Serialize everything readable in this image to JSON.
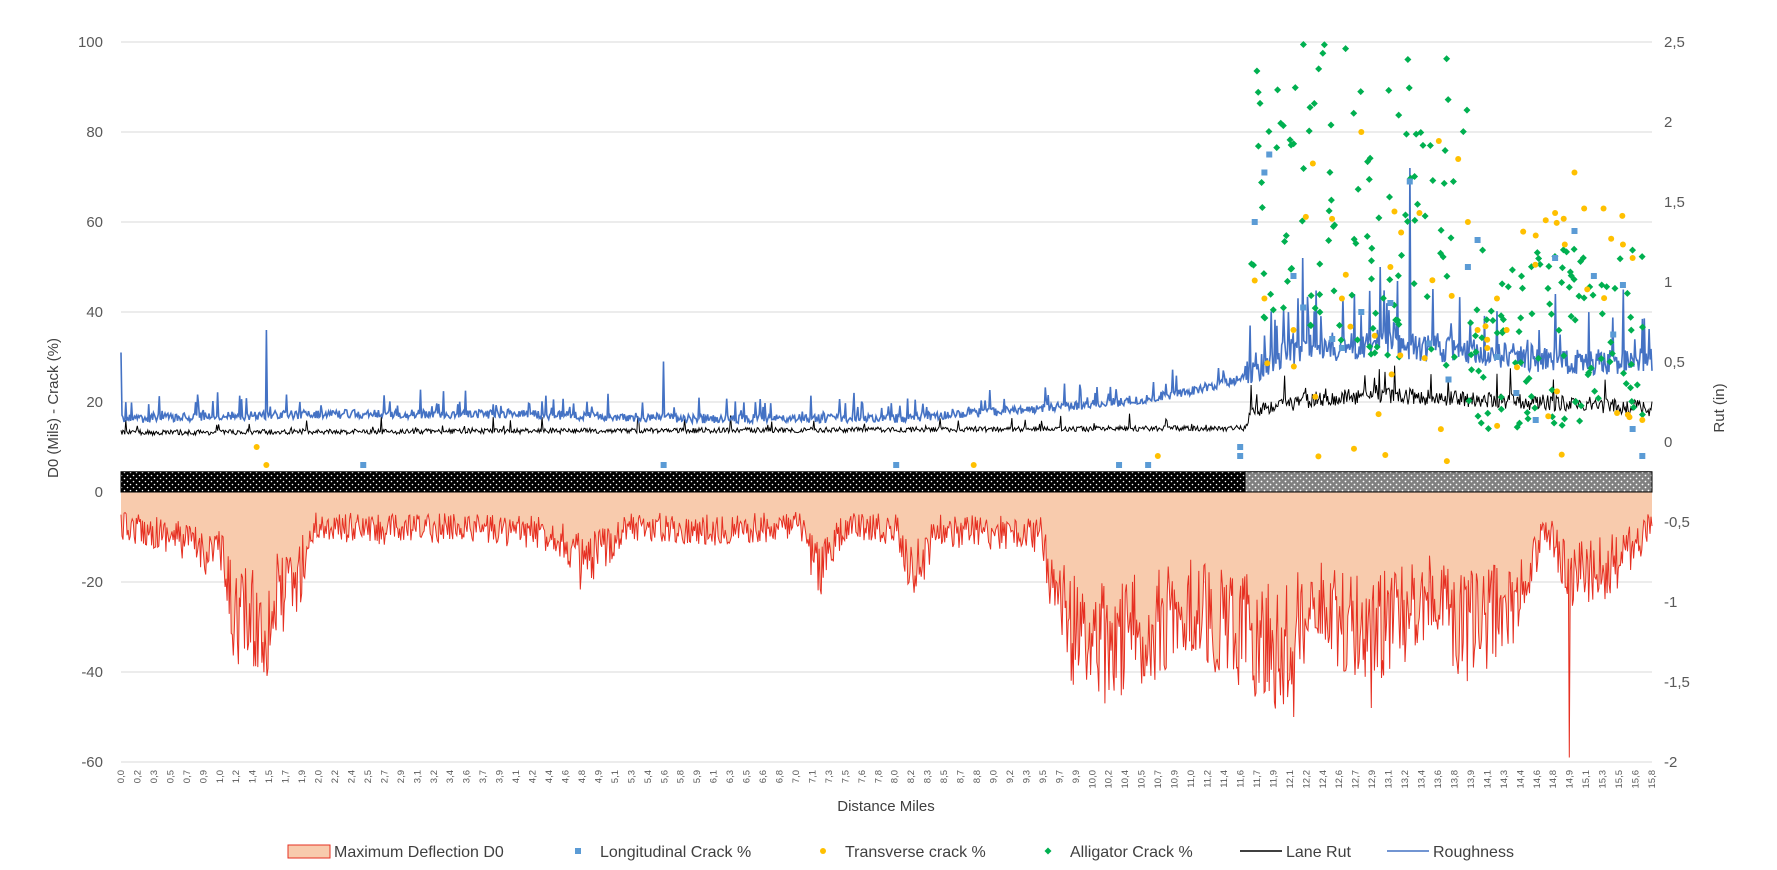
{
  "chart_data": {
    "type": "line",
    "title": "",
    "xlabel": "Distance Miles",
    "ylabel_left": "D0 (Mils) - Crack (%)",
    "ylabel_right": "Rut (in)",
    "x_range": [
      0.0,
      15.8
    ],
    "ylim_left": [
      -60,
      100
    ],
    "ylim_right": [
      -2,
      2.5
    ],
    "y_ticks_left": [
      "100",
      "80",
      "60",
      "40",
      "20",
      "0",
      "-20",
      "-40",
      "-60"
    ],
    "y_ticks_right": [
      "2,5",
      "2",
      "1,5",
      "1",
      "0,5",
      "0",
      "-0,5",
      "-1",
      "-1,5",
      "-2"
    ],
    "x_ticks": [
      "0,0",
      "0,2",
      "0,3",
      "0,5",
      "0,7",
      "0,9",
      "1,0",
      "1,2",
      "1,4",
      "1,5",
      "1,7",
      "1,9",
      "2,0",
      "2,2",
      "2,4",
      "2,5",
      "2,7",
      "2,9",
      "3,1",
      "3,2",
      "3,4",
      "3,6",
      "3,7",
      "3,9",
      "4,1",
      "4,2",
      "4,4",
      "4,6",
      "4,8",
      "4,9",
      "5,1",
      "5,3",
      "5,4",
      "5,6",
      "5,8",
      "5,9",
      "6,1",
      "6,3",
      "6,5",
      "6,6",
      "6,8",
      "7,0",
      "7,1",
      "7,3",
      "7,5",
      "7,6",
      "7,8",
      "8,0",
      "8,2",
      "8,3",
      "8,5",
      "8,7",
      "8,8",
      "9,0",
      "9,2",
      "9,3",
      "9,5",
      "9,7",
      "9,9",
      "10,0",
      "10,2",
      "10,4",
      "10,5",
      "10,7",
      "10,9",
      "11,0",
      "11,2",
      "11,4",
      "11,6",
      "11,7",
      "11,9",
      "12,1",
      "12,2",
      "12,4",
      "12,6",
      "12,7",
      "12,9",
      "13,1",
      "13,2",
      "13,4",
      "13,6",
      "13,8",
      "13,9",
      "14,1",
      "14,3",
      "14,4",
      "14,6",
      "14,8",
      "14,9",
      "15,1",
      "15,3",
      "15,5",
      "15,6",
      "15,8"
    ],
    "grid": "horizontal",
    "legend_position": "bottom",
    "section_band": {
      "break_mile": 11.6,
      "colors": [
        "#000000",
        "#7f7f7f"
      ]
    },
    "series": [
      {
        "name": "Maximum Deflection D0",
        "type": "area",
        "axis": "left",
        "color": "#e63022",
        "fill": "#f8cbad",
        "profile": [
          [
            0,
            -8
          ],
          [
            0.5,
            -10
          ],
          [
            0.9,
            -14
          ],
          [
            1.0,
            -12
          ],
          [
            1.15,
            -28
          ],
          [
            1.5,
            -32
          ],
          [
            1.6,
            -25
          ],
          [
            1.8,
            -22
          ],
          [
            2.0,
            -8
          ],
          [
            2.8,
            -9
          ],
          [
            3.5,
            -8
          ],
          [
            4.5,
            -10
          ],
          [
            4.8,
            -18
          ],
          [
            5.2,
            -8
          ],
          [
            6.0,
            -9
          ],
          [
            7.0,
            -8
          ],
          [
            7.2,
            -18
          ],
          [
            7.5,
            -8
          ],
          [
            8.0,
            -9
          ],
          [
            8.2,
            -20
          ],
          [
            8.4,
            -9
          ],
          [
            9.5,
            -10
          ],
          [
            9.6,
            -20
          ],
          [
            9.8,
            -32
          ],
          [
            10.2,
            -36
          ],
          [
            10.6,
            -32
          ],
          [
            11.0,
            -26
          ],
          [
            11.3,
            -30
          ],
          [
            11.7,
            -34
          ],
          [
            12.0,
            -38
          ],
          [
            12.3,
            -24
          ],
          [
            12.7,
            -32
          ],
          [
            13.2,
            -30
          ],
          [
            13.5,
            -24
          ],
          [
            13.9,
            -32
          ],
          [
            14.4,
            -26
          ],
          [
            14.7,
            -9
          ],
          [
            15.0,
            -20
          ],
          [
            15.4,
            -17
          ],
          [
            15.8,
            -8
          ]
        ],
        "spikes": [
          [
            1.5,
            -35
          ],
          [
            10.2,
            -44
          ],
          [
            12.1,
            -50
          ],
          [
            12.9,
            -48
          ],
          [
            14.95,
            -59
          ]
        ]
      },
      {
        "name": "Longitudinal Crack %",
        "type": "scatter",
        "axis": "left",
        "color": "#5b9bd5",
        "marker": "square",
        "points": [
          [
            2.5,
            6
          ],
          [
            5.6,
            6
          ],
          [
            8.0,
            6
          ],
          [
            10.3,
            6
          ],
          [
            10.6,
            6
          ],
          [
            11.55,
            8
          ],
          [
            11.55,
            10
          ],
          [
            11.7,
            60
          ],
          [
            11.8,
            71
          ],
          [
            11.85,
            75
          ],
          [
            12.1,
            48
          ],
          [
            12.2,
            41
          ],
          [
            12.5,
            34
          ],
          [
            12.6,
            32
          ],
          [
            12.8,
            40
          ],
          [
            13.1,
            42
          ],
          [
            13.3,
            69
          ],
          [
            13.5,
            33
          ],
          [
            13.7,
            25
          ],
          [
            13.9,
            50
          ],
          [
            14.0,
            56
          ],
          [
            14.2,
            30
          ],
          [
            14.4,
            22
          ],
          [
            14.6,
            16
          ],
          [
            14.8,
            52
          ],
          [
            15.0,
            58
          ],
          [
            15.2,
            48
          ],
          [
            15.4,
            35
          ],
          [
            15.5,
            46
          ],
          [
            15.6,
            14
          ],
          [
            15.7,
            8
          ]
        ]
      },
      {
        "name": "Transverse crack %",
        "type": "scatter",
        "axis": "left",
        "color": "#ffc000",
        "marker": "circle",
        "points": [
          [
            1.4,
            10
          ],
          [
            1.5,
            6
          ],
          [
            8.8,
            6
          ],
          [
            10.7,
            8
          ],
          [
            11.7,
            47
          ],
          [
            11.8,
            43
          ],
          [
            12.1,
            36
          ],
          [
            12.3,
            73
          ],
          [
            12.6,
            43
          ],
          [
            12.8,
            80
          ],
          [
            13.1,
            50
          ],
          [
            13.4,
            62
          ],
          [
            13.6,
            78
          ],
          [
            13.8,
            74
          ],
          [
            13.9,
            60
          ],
          [
            14.0,
            36
          ],
          [
            14.1,
            32
          ],
          [
            14.2,
            43
          ],
          [
            14.3,
            36
          ],
          [
            14.6,
            57
          ],
          [
            14.8,
            62
          ],
          [
            14.9,
            55
          ],
          [
            15.0,
            71
          ],
          [
            15.1,
            63
          ],
          [
            15.3,
            63
          ],
          [
            15.5,
            55
          ],
          [
            15.6,
            52
          ],
          [
            15.7,
            16
          ]
        ]
      },
      {
        "name": "Alligator Crack %",
        "type": "scatter",
        "axis": "left",
        "color": "#00b050",
        "marker": "diamond",
        "region": {
          "x_start": 11.65,
          "x_end": 15.75
        }
      },
      {
        "name": "Lane Rut",
        "type": "line",
        "axis": "left",
        "color": "#000000",
        "profile": [
          [
            0,
            13
          ],
          [
            11.6,
            14
          ],
          [
            11.7,
            18
          ],
          [
            12.3,
            20
          ],
          [
            13.0,
            21
          ],
          [
            14.0,
            20
          ],
          [
            15.0,
            19
          ],
          [
            15.8,
            18
          ]
        ]
      },
      {
        "name": "Roughness",
        "type": "line",
        "axis": "left",
        "color": "#4472c4",
        "profile": [
          [
            0,
            16
          ],
          [
            2.0,
            17
          ],
          [
            4.0,
            17
          ],
          [
            6.0,
            16
          ],
          [
            8.0,
            16
          ],
          [
            9.3,
            18
          ],
          [
            10.5,
            20
          ],
          [
            11.0,
            22
          ],
          [
            11.6,
            25
          ],
          [
            12.0,
            30
          ],
          [
            13.0,
            32
          ],
          [
            14.0,
            30
          ],
          [
            15.0,
            28
          ],
          [
            15.8,
            28
          ]
        ],
        "spikes": [
          [
            0.0,
            31
          ],
          [
            1.5,
            36
          ],
          [
            5.6,
            29
          ],
          [
            11.65,
            37
          ],
          [
            13.0,
            50
          ],
          [
            13.3,
            72
          ],
          [
            12.2,
            52
          ],
          [
            14.8,
            44
          ],
          [
            15.5,
            45
          ]
        ]
      }
    ]
  }
}
